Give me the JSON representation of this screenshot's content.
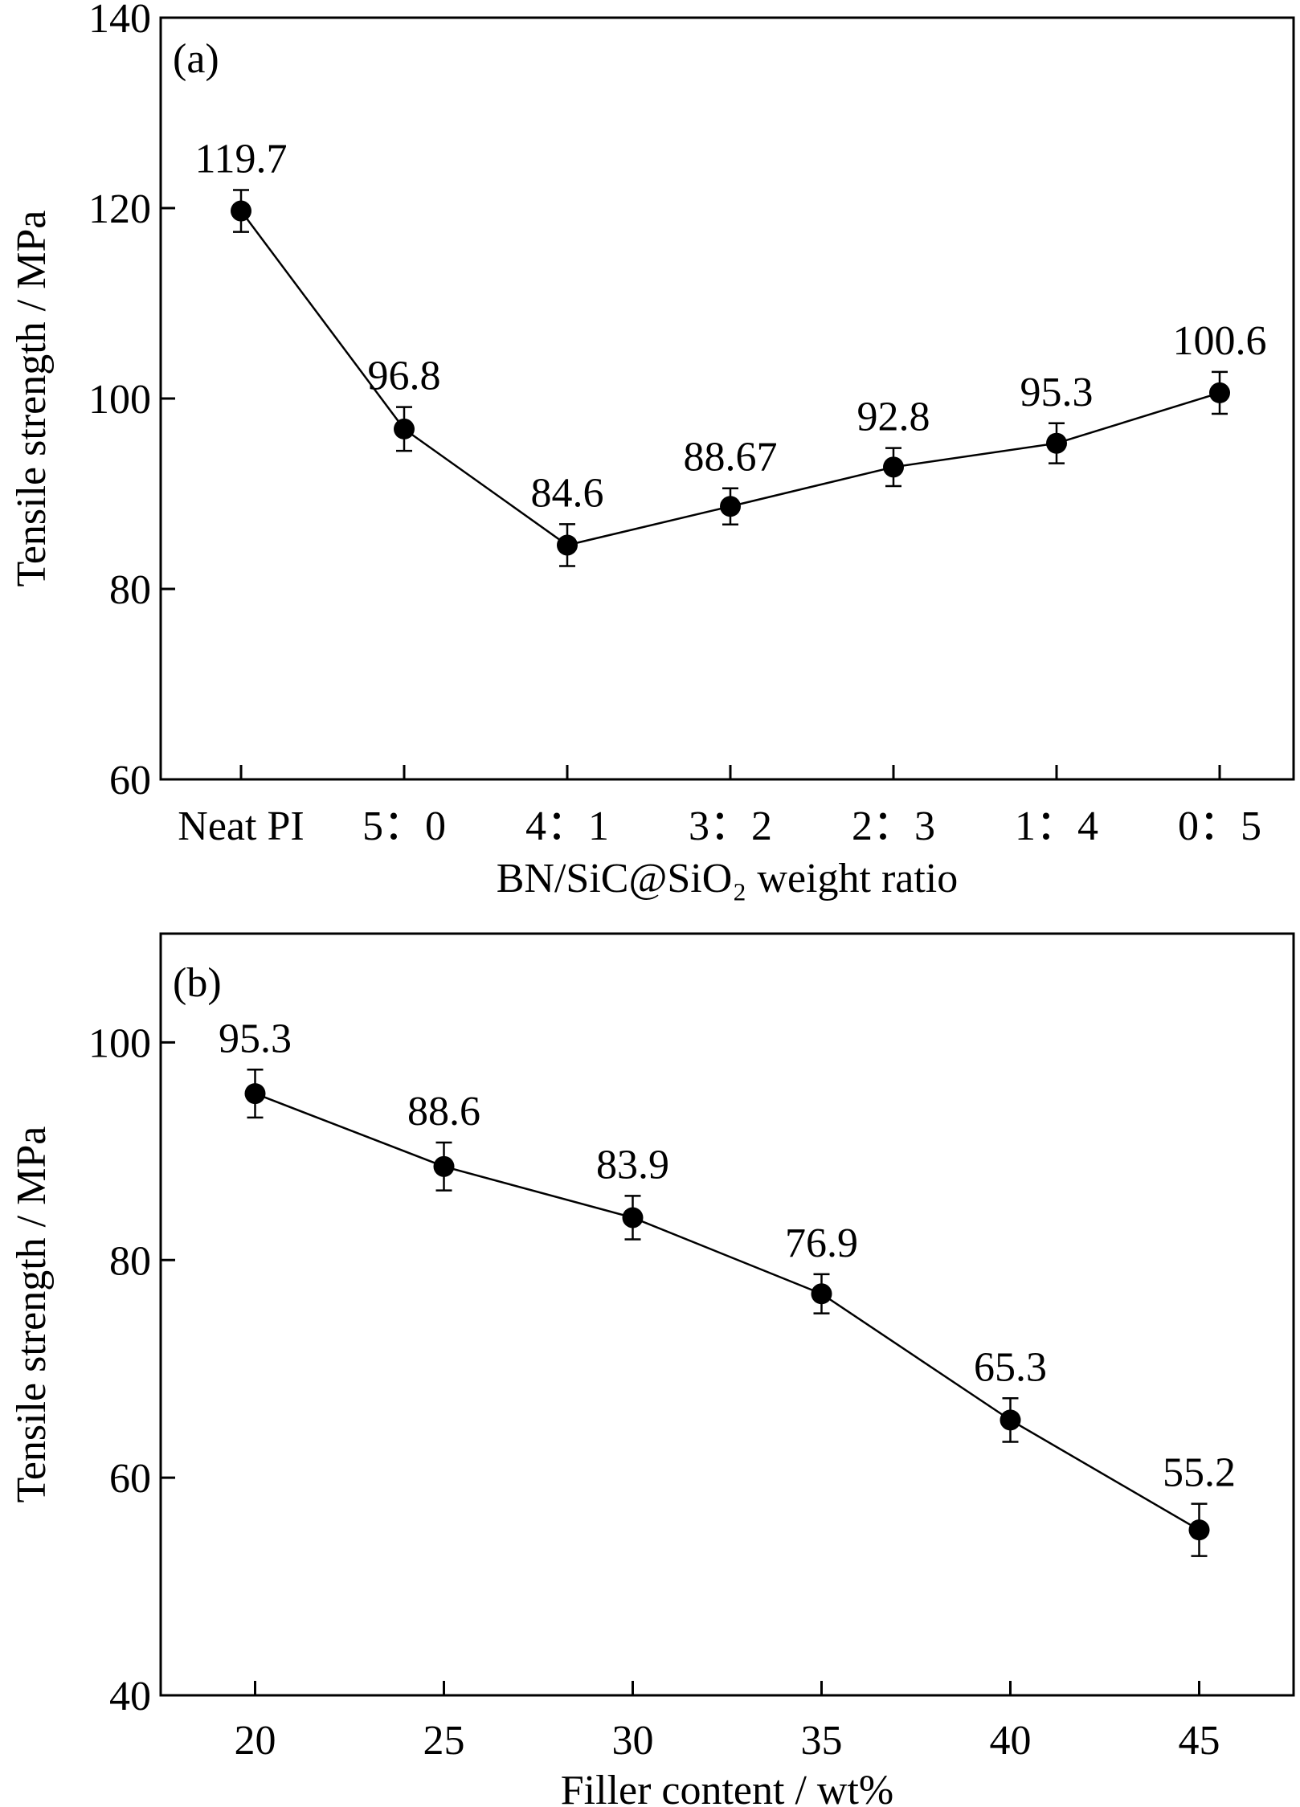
{
  "chart_data": [
    {
      "type": "line",
      "panel_label": "(a)",
      "xlabel": "BN/SiC@SiO₂ weight ratio",
      "ylabel": "Tensile strength / MPa",
      "categories": [
        "Neat PI",
        "5：0",
        "4：1",
        "3：2",
        "2：3",
        "1：4",
        "0：5"
      ],
      "ylim": [
        60,
        140
      ],
      "yticks": [
        60,
        80,
        100,
        120,
        140
      ],
      "series": [
        {
          "values": [
            119.7,
            96.8,
            84.6,
            88.67,
            92.8,
            95.3,
            100.6
          ],
          "errors": [
            2.2,
            2.3,
            2.2,
            1.9,
            2.0,
            2.1,
            2.2
          ],
          "data_labels": [
            "119.7",
            "96.8",
            "84.6",
            "88.67",
            "92.8",
            "95.3",
            "100.6"
          ]
        }
      ],
      "grid": false
    },
    {
      "type": "line",
      "panel_label": "(b)",
      "xlabel": "Filler content / wt%",
      "ylabel": "Tensile strength / MPa",
      "x": [
        20,
        25,
        30,
        35,
        40,
        45
      ],
      "xlim": [
        17.5,
        47.5
      ],
      "xticks": [
        20,
        25,
        30,
        35,
        40,
        45
      ],
      "ylim": [
        40,
        110
      ],
      "yticks": [
        40,
        60,
        80,
        100
      ],
      "series": [
        {
          "values": [
            95.3,
            88.6,
            83.9,
            76.9,
            65.3,
            55.2
          ],
          "errors": [
            2.2,
            2.2,
            2.0,
            1.8,
            2.0,
            2.4
          ],
          "data_labels": [
            "95.3",
            "88.6",
            "83.9",
            "76.9",
            "65.3",
            "55.2"
          ]
        }
      ],
      "grid": false
    }
  ]
}
